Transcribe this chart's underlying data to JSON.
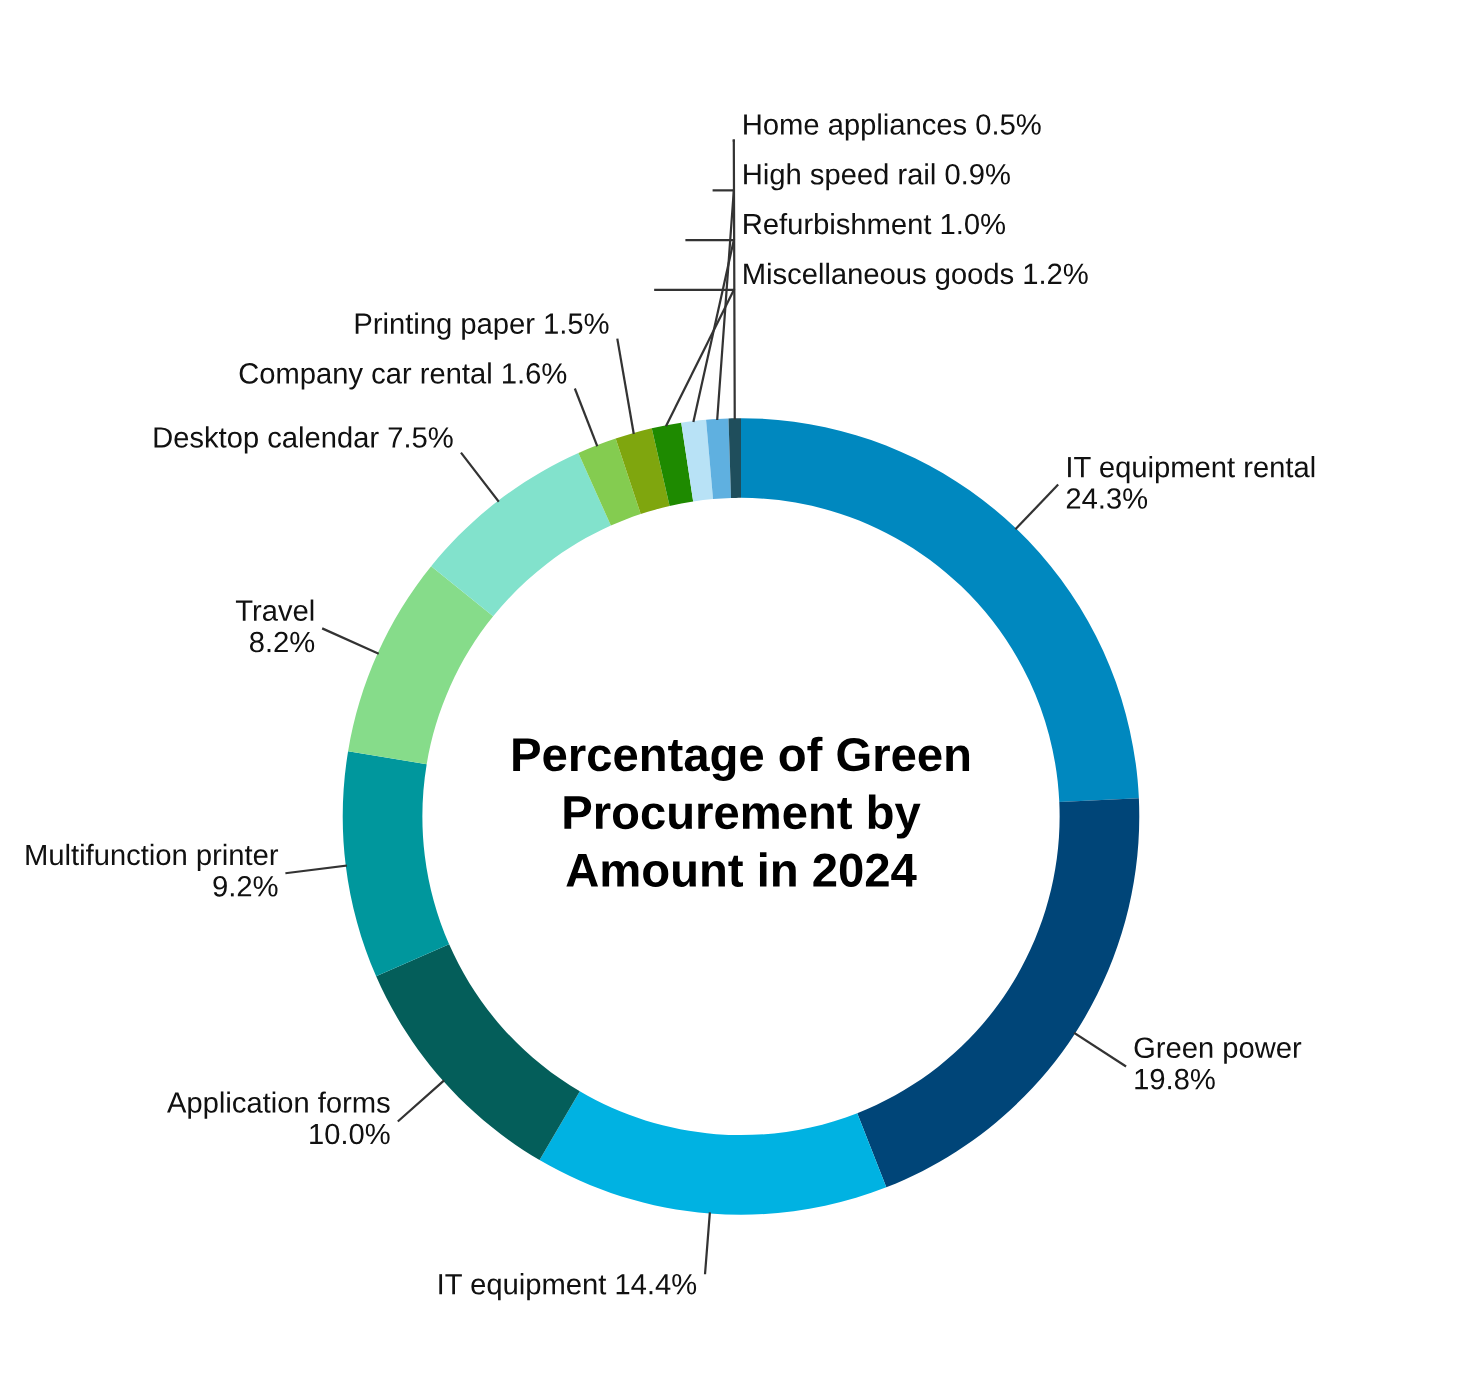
{
  "chart_data": {
    "type": "donut",
    "title": "Percentage of Green\nProcurement by\nAmount in 2024",
    "categories": [
      "IT equipment rental",
      "Green power",
      "IT equipment",
      "Application forms",
      "Multifunction printer",
      "Travel",
      "Desktop calendar",
      "Company car rental",
      "Printing paper",
      "Miscellaneous goods",
      "Refurbishment",
      "High speed rail",
      "Home appliances"
    ],
    "values": [
      24.3,
      19.8,
      14.4,
      10.0,
      9.2,
      8.2,
      7.5,
      1.6,
      1.5,
      1.2,
      1.0,
      0.9,
      0.5
    ],
    "value_labels": [
      "24.3%",
      "19.8%",
      "14.4%",
      "10.0%",
      "9.2%",
      "8.2%",
      "7.5%",
      "1.6%",
      "1.5%",
      "1.2%",
      "1.0%",
      "0.9%",
      "0.5%"
    ],
    "colors": [
      "#0088bf",
      "#004578",
      "#00b2e2",
      "#045e5a",
      "#00979d",
      "#86dc8a",
      "#82e2cc",
      "#84cc50",
      "#7fa60e",
      "#1e8a00",
      "#b8e2f6",
      "#5fb0e0",
      "#1f4e5c"
    ],
    "legend": false
  }
}
